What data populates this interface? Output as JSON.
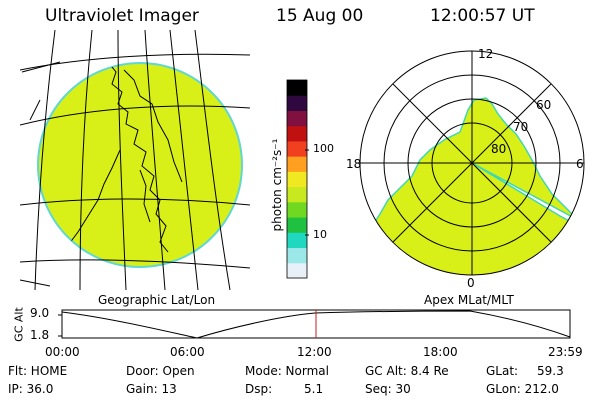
{
  "header": {
    "instrument": "Ultraviolet Imager",
    "date": "15 Aug 00",
    "time": "12:00:57 UT"
  },
  "colorbar": {
    "unit_label": "photon cm⁻²s⁻¹",
    "ticks": [
      "100",
      "10"
    ],
    "colors": [
      "#e8f0f8",
      "#9ce8e8",
      "#20d8c0",
      "#20c040",
      "#70d820",
      "#c8e820",
      "#f0e820",
      "#ffa020",
      "#f04020",
      "#c01010",
      "#801040",
      "#300840",
      "#000000"
    ]
  },
  "geo_panel": {
    "label": "Geographic Lat/Lon",
    "fill_color": "#d8f018"
  },
  "polar_panel": {
    "label": "Apex MLat/MLT",
    "mlt_labels": {
      "top": "12",
      "left": "18",
      "right": "6",
      "bottom": "0"
    },
    "lat_labels": [
      "60",
      "70",
      "80"
    ],
    "fill_color": "#d8f018"
  },
  "altitude_plot": {
    "axis_label": "GC Alt",
    "y_ticks": [
      "9.0",
      "1.8"
    ],
    "x_ticks": [
      "00:00",
      "06:00",
      "12:00",
      "18:00",
      "23:59"
    ],
    "marker_hour": 12.0,
    "marker_color": "#c02020"
  },
  "status": {
    "flt": "Flt: HOME",
    "ip": "IP: 36.0",
    "door": "Door: Open",
    "gain": "Gain: 13",
    "mode": "Mode: Normal",
    "dsp": "Dsp:",
    "dsp_value": "5.1",
    "gc_alt": "GC Alt: 8.4 Re",
    "seq": "Seq: 30",
    "glat": "GLat:",
    "glat_value": "59.3",
    "glon": "GLon: 212.0"
  }
}
